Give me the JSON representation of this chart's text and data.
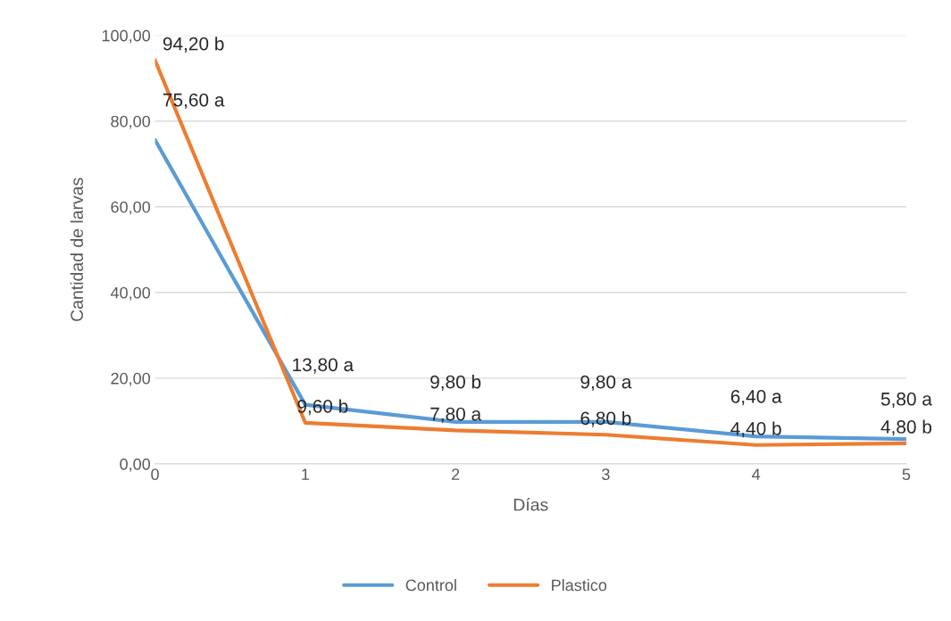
{
  "chart_data": {
    "type": "line",
    "xlabel": "Días",
    "ylabel": "Cantidad de larvas",
    "x": [
      0,
      1,
      2,
      3,
      4,
      5
    ],
    "series": [
      {
        "name": "Control",
        "color": "#5b9bd5",
        "values": [
          75.6,
          13.8,
          9.8,
          9.8,
          6.4,
          5.8
        ],
        "value_labels": [
          "75,60 a",
          "13,80 a",
          "9,80 b",
          "9,80 a",
          "6,40 a",
          "5,80 a"
        ]
      },
      {
        "name": "Plastico",
        "color": "#ed7d31",
        "values": [
          94.2,
          9.6,
          7.8,
          6.8,
          4.4,
          4.8
        ],
        "value_labels": [
          "94,20 b",
          "9,60 b",
          "7,80 a",
          "6,80 b",
          "4,40 b",
          "4,80 b"
        ]
      }
    ],
    "xlim": [
      0,
      5
    ],
    "xticks": [
      0,
      1,
      2,
      3,
      4,
      5
    ],
    "ylim": [
      0,
      100
    ],
    "yticks": [
      {
        "value": 0,
        "label": "0,00"
      },
      {
        "value": 20,
        "label": "20,00"
      },
      {
        "value": 40,
        "label": "40,00"
      },
      {
        "value": 60,
        "label": "60,00"
      },
      {
        "value": 80,
        "label": "80,00"
      },
      {
        "value": 100,
        "label": "100,00"
      }
    ],
    "grid": "y",
    "legend": "bottom",
    "marker": "none",
    "line_style": "solid"
  }
}
